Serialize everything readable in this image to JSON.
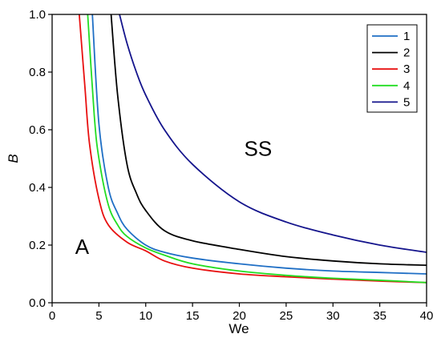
{
  "chart_data": {
    "type": "line",
    "title": "",
    "xlabel": "We",
    "ylabel": "B",
    "xlim": [
      0,
      40
    ],
    "ylim": [
      0,
      1.0
    ],
    "xticks": [
      0,
      5,
      10,
      15,
      20,
      25,
      30,
      35,
      40
    ],
    "yticks": [
      0.0,
      0.2,
      0.4,
      0.6,
      0.8,
      1.0
    ],
    "xtick_labels": [
      "0",
      "5",
      "10",
      "15",
      "20",
      "25",
      "30",
      "35",
      "40"
    ],
    "ytick_labels": [
      "0.0",
      "0.2",
      "0.4",
      "0.6",
      "0.8",
      "1.0"
    ],
    "grid": false,
    "legend_position": "top-right",
    "annotations": [
      {
        "text": "SS",
        "x": 22,
        "y": 0.51
      },
      {
        "text": "A",
        "x": 3.2,
        "y": 0.17
      }
    ],
    "series": [
      {
        "name": "1",
        "color": "#1f6fc5",
        "x": [
          4.3,
          5.0,
          6.0,
          7.0,
          8.0,
          10.0,
          12.0,
          15.0,
          20.0,
          25.0,
          30.0,
          35.0,
          40.0
        ],
        "y": [
          1.0,
          0.62,
          0.4,
          0.31,
          0.255,
          0.2,
          0.175,
          0.155,
          0.135,
          0.12,
          0.11,
          0.105,
          0.1
        ]
      },
      {
        "name": "2",
        "color": "#000000",
        "x": [
          6.3,
          7.0,
          8.0,
          9.0,
          10.0,
          12.0,
          15.0,
          20.0,
          25.0,
          30.0,
          35.0,
          40.0
        ],
        "y": [
          1.0,
          0.72,
          0.48,
          0.38,
          0.32,
          0.25,
          0.215,
          0.185,
          0.16,
          0.145,
          0.135,
          0.13
        ]
      },
      {
        "name": "3",
        "color": "#e81010",
        "x": [
          2.9,
          3.5,
          4.0,
          5.0,
          6.0,
          8.0,
          10.0,
          12.0,
          15.0,
          20.0,
          25.0,
          30.0,
          35.0,
          40.0
        ],
        "y": [
          1.0,
          0.75,
          0.55,
          0.36,
          0.27,
          0.21,
          0.18,
          0.145,
          0.12,
          0.1,
          0.09,
          0.082,
          0.075,
          0.07
        ]
      },
      {
        "name": "4",
        "color": "#22dd22",
        "x": [
          3.8,
          4.5,
          5.0,
          6.0,
          7.0,
          8.0,
          10.0,
          12.0,
          15.0,
          20.0,
          25.0,
          30.0,
          35.0,
          40.0
        ],
        "y": [
          1.0,
          0.65,
          0.5,
          0.34,
          0.27,
          0.23,
          0.19,
          0.165,
          0.135,
          0.11,
          0.095,
          0.085,
          0.078,
          0.07
        ]
      },
      {
        "name": "5",
        "color": "#14148c",
        "x": [
          7.2,
          8.0,
          9.0,
          10.0,
          12.0,
          15.0,
          20.0,
          25.0,
          30.0,
          35.0,
          40.0
        ],
        "y": [
          1.0,
          0.9,
          0.8,
          0.72,
          0.6,
          0.48,
          0.35,
          0.28,
          0.235,
          0.2,
          0.175
        ]
      }
    ]
  }
}
